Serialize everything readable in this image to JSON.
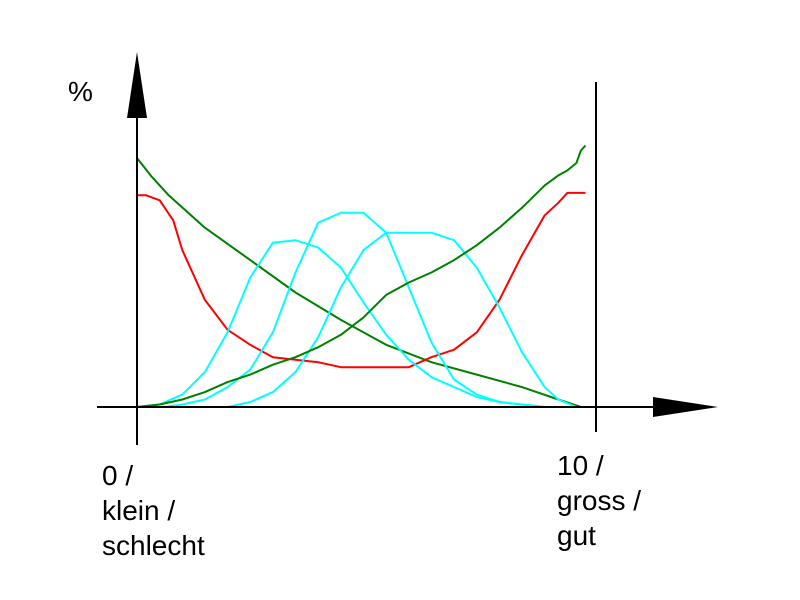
{
  "chart_data": {
    "type": "line",
    "ylabel": "%",
    "xlim": [
      0,
      10
    ],
    "ylim": [
      0,
      100
    ],
    "x_tick_labels": {
      "left": [
        "0 /",
        "klein /",
        "schlecht"
      ],
      "right": [
        "10 /",
        "gross /",
        "gut"
      ]
    },
    "series": [
      {
        "color": "#008000",
        "x": [
          0,
          0.3,
          0.7,
          1.5,
          2.5,
          3.5,
          4.5,
          5.5,
          6.5,
          7.5,
          8.5,
          9.3,
          9.8
        ],
        "y": [
          100,
          93,
          85,
          72,
          59,
          46,
          35,
          25,
          18,
          13,
          8,
          3,
          0
        ]
      },
      {
        "color": "#ff0000",
        "x": [
          0,
          0.2,
          0.5,
          0.8,
          1,
          1.5,
          2,
          2.5,
          3,
          3.5,
          4,
          4.5,
          5,
          5.5,
          6,
          6.5,
          7,
          7.5,
          8,
          8.5,
          9,
          9.3,
          9.5,
          9.7,
          9.9
        ],
        "y": [
          85,
          85,
          83,
          75,
          63,
          43,
          31,
          25,
          20,
          19,
          18,
          16,
          16,
          16,
          16,
          20,
          23,
          30,
          43,
          61,
          77,
          82,
          86,
          86,
          86
        ]
      },
      {
        "color": "#00ffff",
        "x": [
          0,
          0.5,
          1,
          1.5,
          2,
          2.5,
          3,
          3.5,
          4,
          4.5,
          5,
          5.5,
          6,
          6.5,
          7,
          7.5,
          8,
          8.5,
          9,
          9.3,
          9.8
        ],
        "y": [
          0,
          1,
          5,
          14,
          30,
          52,
          66,
          67,
          64,
          56,
          42,
          29,
          19,
          12,
          8,
          4,
          2,
          1,
          0,
          0,
          0
        ]
      },
      {
        "color": "#00ffff",
        "x": [
          0.6,
          1,
          1.5,
          2,
          2.5,
          3,
          3.5,
          4,
          4.5,
          5,
          5.5,
          6,
          6.5,
          7,
          7.5,
          8,
          8.5,
          9,
          9.3
        ],
        "y": [
          0,
          1,
          3,
          8,
          15,
          30,
          54,
          74,
          78,
          78,
          70,
          48,
          26,
          11,
          5,
          2,
          1,
          0,
          0
        ]
      },
      {
        "color": "#00ffff",
        "x": [
          2,
          2.5,
          3,
          3.5,
          4,
          4.5,
          5,
          5.5,
          6,
          6.5,
          7,
          7.5,
          8,
          8.5,
          9,
          9.3,
          9.7
        ],
        "y": [
          0,
          2,
          6,
          14,
          28,
          48,
          63,
          70,
          70,
          70,
          67,
          56,
          40,
          22,
          8,
          3,
          0
        ]
      },
      {
        "color": "#008000",
        "x": [
          0,
          0.5,
          1,
          1.5,
          2,
          2.5,
          3,
          3.5,
          4,
          4.5,
          5,
          5.5,
          6,
          6.5,
          7,
          7.5,
          8,
          8.5,
          9,
          9.3,
          9.5,
          9.7,
          9.8,
          9.9
        ],
        "y": [
          0,
          1,
          3,
          6,
          10,
          13,
          17,
          20,
          24,
          29,
          36,
          45,
          50,
          54,
          59,
          65,
          72,
          80,
          89,
          93,
          95,
          98,
          103,
          105
        ]
      }
    ]
  }
}
